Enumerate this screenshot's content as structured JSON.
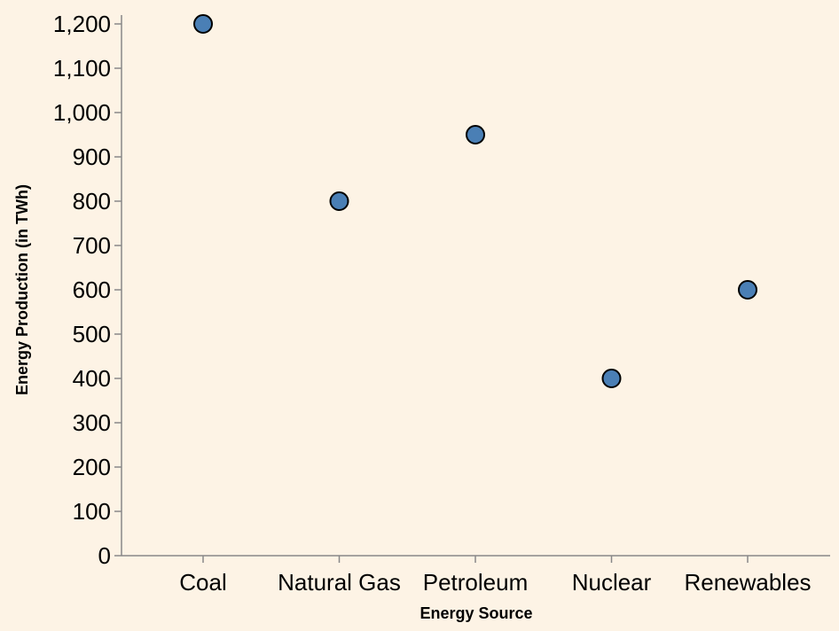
{
  "chart_data": {
    "type": "scatter",
    "categories": [
      "Coal",
      "Natural Gas",
      "Petroleum",
      "Nuclear",
      "Renewables"
    ],
    "values": [
      1200,
      800,
      950,
      400,
      600
    ],
    "title": "",
    "xlabel": "Energy Source",
    "ylabel": "Energy Production (in TWh)",
    "ylim": [
      0,
      1200
    ],
    "yticks": [
      0,
      100,
      200,
      300,
      400,
      500,
      600,
      700,
      800,
      900,
      1000,
      1100,
      1200
    ],
    "grid": false,
    "legend": "none"
  },
  "colors": {
    "background": "#fdf3e5",
    "point_fill": "#4a7fb5",
    "point_stroke": "#000000",
    "axis": "#888888"
  }
}
